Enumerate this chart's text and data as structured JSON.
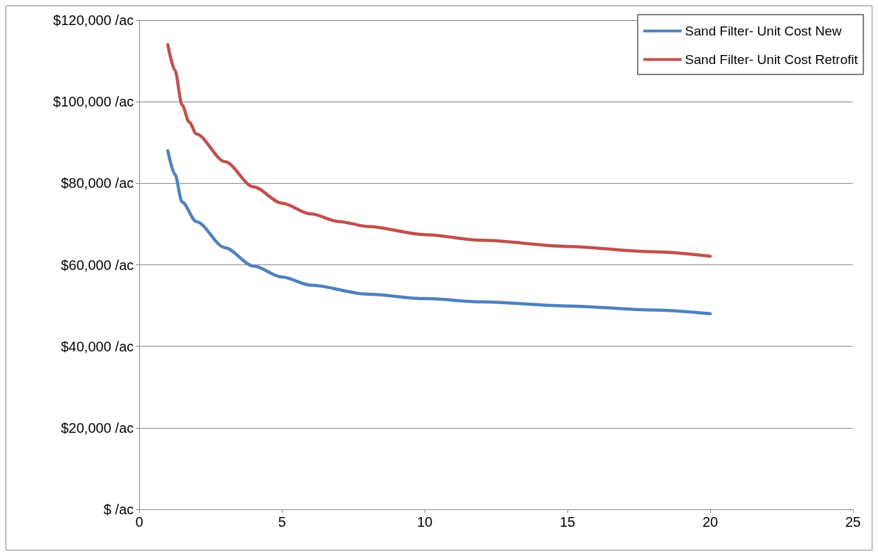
{
  "chart_data": {
    "type": "line",
    "xlim": [
      0,
      25
    ],
    "xticks": [
      0,
      5,
      10,
      15,
      20,
      25
    ],
    "ylim": [
      0,
      120000
    ],
    "yticks": [
      {
        "value": 0,
        "label": "$ /ac"
      },
      {
        "value": 20000,
        "label": "$20,000 /ac"
      },
      {
        "value": 40000,
        "label": "$40,000 /ac"
      },
      {
        "value": 60000,
        "label": "$60,000 /ac"
      },
      {
        "value": 80000,
        "label": "$80,000 /ac"
      },
      {
        "value": 100000,
        "label": "$100,000 /ac"
      },
      {
        "value": 120000,
        "label": "$120,000 /ac"
      }
    ],
    "grid": "y",
    "legend": "top right",
    "marker": "none",
    "line_style": "solid",
    "series": [
      {
        "name": "Sand Filter- Unit Cost New",
        "color": "#4f81bd",
        "x": [
          1,
          1.25,
          1.5,
          2,
          3,
          4,
          5,
          6,
          8,
          10,
          12,
          15,
          18,
          20
        ],
        "values": [
          88000,
          82200,
          75400,
          70600,
          64200,
          59700,
          57000,
          55000,
          52800,
          51700,
          50900,
          49900,
          48900,
          48000
        ]
      },
      {
        "name": "Sand Filter- Unit Cost Retrofit",
        "color": "#c0504d",
        "x": [
          1,
          1.25,
          1.5,
          1.75,
          2,
          3,
          4,
          5,
          6,
          7,
          8,
          10,
          12,
          15,
          18,
          20
        ],
        "values": [
          114000,
          107700,
          99200,
          95000,
          92100,
          85300,
          79100,
          75100,
          72500,
          70600,
          69400,
          67400,
          66000,
          64500,
          63200,
          62100
        ]
      }
    ]
  }
}
